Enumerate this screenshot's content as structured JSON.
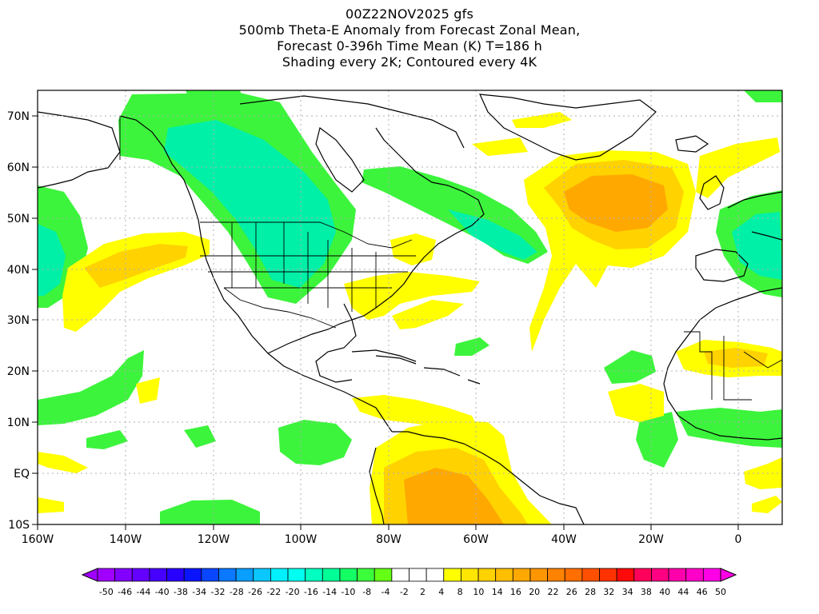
{
  "titles": {
    "line1": "00Z22NOV2025 gfs",
    "line2": "500mb Theta-E Anomaly from Forecast Zonal Mean,",
    "line3": "Forecast 0-396h Time Mean (K) T=186 h",
    "line4": "Shading every 2K; Contoured every 4K"
  },
  "axes": {
    "lon_range": [
      -160,
      10
    ],
    "lat_range": [
      -10,
      75
    ],
    "lon_ticks": [
      -160,
      -140,
      -120,
      -100,
      -80,
      -60,
      -40,
      -20,
      0
    ],
    "lon_labels": [
      "160W",
      "140W",
      "120W",
      "100W",
      "80W",
      "60W",
      "40W",
      "20W",
      "0"
    ],
    "lat_ticks": [
      -10,
      0,
      10,
      20,
      30,
      40,
      50,
      60,
      70
    ],
    "lat_labels": [
      "10S",
      "EQ",
      "10N",
      "20N",
      "30N",
      "40N",
      "50N",
      "60N",
      "70N"
    ],
    "grid": true
  },
  "colorbar": {
    "labels": [
      "-50",
      "-46",
      "-44",
      "-40",
      "-38",
      "-34",
      "-32",
      "-28",
      "-26",
      "-22",
      "-20",
      "-16",
      "-14",
      "-10",
      "-8",
      "-4",
      "-2",
      "2",
      "4",
      "8",
      "10",
      "14",
      "16",
      "20",
      "22",
      "26",
      "28",
      "32",
      "34",
      "38",
      "40",
      "44",
      "46",
      "50"
    ],
    "colors": [
      "#a000ff",
      "#8200ff",
      "#6400ff",
      "#4600ff",
      "#2800ff",
      "#0a14ff",
      "#0a46ff",
      "#0a78ff",
      "#0a9eff",
      "#0ac8ff",
      "#00f0ff",
      "#00fff0",
      "#00ffc0",
      "#00ff96",
      "#14ff64",
      "#3cff3c",
      "#64ff14",
      "#ffffff",
      "#ffffff",
      "#ffffff",
      "#ffff00",
      "#ffe600",
      "#ffd200",
      "#ffbe00",
      "#ffa800",
      "#ff9600",
      "#ff8200",
      "#ff6e00",
      "#ff5000",
      "#ff3200",
      "#ff0a0a",
      "#ff005a",
      "#ff0082",
      "#ff00aa",
      "#ff00c8",
      "#ff00e6"
    ],
    "under_color": "#a000ff",
    "over_color": "#ff00e6"
  },
  "colors": {
    "green": "#3cf43c",
    "green_light": "#64ff14",
    "cyan": "#00f0a8",
    "yellow": "#ffff00",
    "gold": "#ffd200",
    "orange": "#ffa800",
    "orange_dark": "#ff9600",
    "coast": "#000000",
    "grid": "#b0b0b0"
  }
}
